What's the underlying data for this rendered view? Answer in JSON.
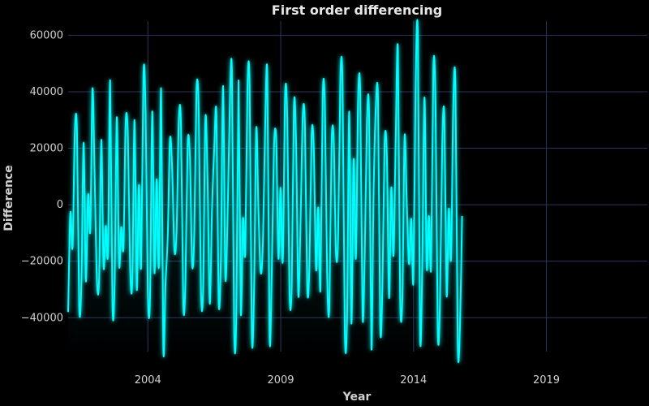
{
  "chart_data": {
    "type": "line",
    "title": "First order differencing",
    "xlabel": "Year",
    "ylabel": "Difference",
    "xlim": [
      2001.0,
      2022.8
    ],
    "ylim": [
      -52000,
      65000
    ],
    "x_ticks": [
      2004,
      2009,
      2014,
      2019
    ],
    "y_ticks": [
      -40000,
      -20000,
      0,
      20000,
      40000,
      60000
    ],
    "grid": true,
    "line_color": "#00ffff",
    "fill_color": "#00ffff",
    "background": "#000000",
    "series": [
      {
        "x_start": 2001.0,
        "x_step": 0.0833,
        "values": [
          -38000,
          -3000,
          -15000,
          25500,
          26000,
          -36000,
          -27000,
          22000,
          -27000,
          3500,
          -9000,
          41000,
          10000,
          -27000,
          -26000,
          23000,
          -22000,
          -7500,
          -17000,
          44000,
          -35000,
          -28000,
          31000,
          -21000,
          -8000,
          -15000,
          29000,
          24000,
          -22000,
          -27000,
          30000,
          -30000,
          7000,
          -22000,
          46000,
          33000,
          -31000,
          -33000,
          33000,
          -24000,
          9000,
          -22000,
          41000,
          -51000,
          -28000,
          -11000,
          23000,
          13000,
          -16000,
          -9000,
          30000,
          28000,
          -35000,
          -27000,
          21000,
          17000,
          -21000,
          -10000,
          40500,
          33000,
          -30000,
          -30000,
          30500,
          8000,
          -35000,
          -2000,
          20000,
          32000,
          -34000,
          -19000,
          42000,
          -25000,
          -6000,
          34000,
          47000,
          -44000,
          -39000,
          44000,
          -38000,
          -5000,
          -17000,
          41000,
          42000,
          -46500,
          -30000,
          27000,
          -2000,
          -24000,
          -13000,
          27000,
          46000,
          -47000,
          -24000,
          20000,
          23000,
          -19000,
          6000,
          -20000,
          38500,
          31000,
          -30000,
          -29000,
          35000,
          22000,
          -32000,
          -6000,
          31500,
          28000,
          -29000,
          -22000,
          24500,
          20000,
          -23000,
          -1000,
          -30000,
          38000,
          35000,
          -24000,
          -37000,
          21000,
          23000,
          -17000,
          -11000,
          45000,
          42000,
          -44500,
          -40000,
          33000,
          -42000,
          16000,
          -19000,
          37000,
          39000,
          -39000,
          -18000,
          29000,
          32000,
          -51000,
          4000,
          34000,
          37000,
          -43000,
          -29000,
          22000,
          17000,
          -33000,
          6000,
          -18000,
          24000,
          55000,
          -32000,
          -33000,
          24000,
          1000,
          -21000,
          -5000,
          -27000,
          42000,
          60000,
          -46000,
          -22000,
          38000,
          -22000,
          -4000,
          -22000,
          48500,
          35000,
          -44500,
          -35000,
          21000,
          31000,
          -32000,
          -1500,
          -19000,
          35000,
          42000,
          -49000,
          -44000,
          -4000
        ]
      }
    ]
  }
}
